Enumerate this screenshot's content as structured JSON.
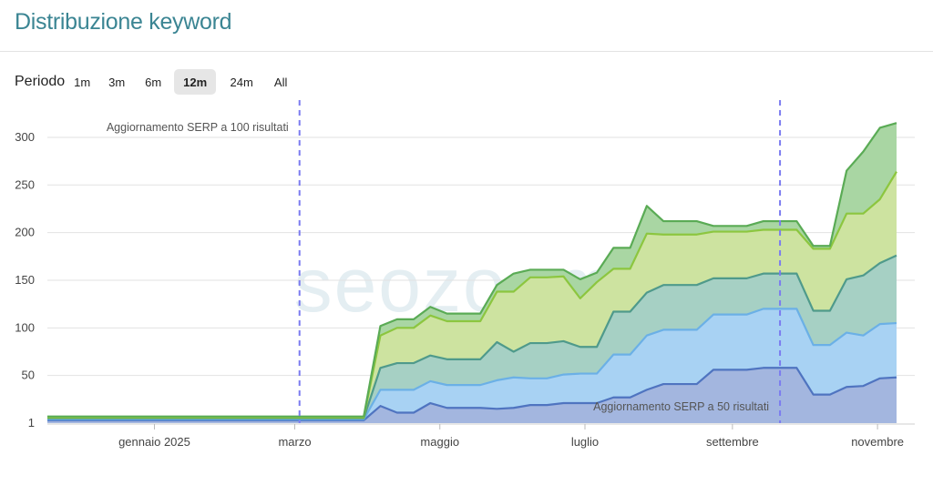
{
  "header": {
    "title": "Distribuzione keyword"
  },
  "period": {
    "label": "Periodo",
    "options": [
      "1m",
      "3m",
      "6m",
      "12m",
      "24m",
      "All"
    ],
    "selected": "12m"
  },
  "watermark": "seozoom",
  "colors": {
    "title": "#3b8593",
    "annotation_line": "#7b7bf0",
    "series": [
      "#4f74c0",
      "#6bb0e6",
      "#4f9a8b",
      "#8cc63f",
      "#5aab55"
    ],
    "fills": [
      "#a3b6df",
      "#a8d2f3",
      "#a6d0c4",
      "#cde3a0",
      "#a9d6a3"
    ]
  },
  "chart_data": {
    "type": "area",
    "stacked": true,
    "x_labels": [
      "gennaio 2025",
      "marzo",
      "maggio",
      "luglio",
      "settembre",
      "novembre"
    ],
    "y_ticks": [
      1,
      50,
      100,
      150,
      200,
      250,
      300
    ],
    "ylim": [
      0,
      320
    ],
    "x": [
      "2024-11-17",
      "2024-11-24",
      "2024-12-01",
      "2024-12-08",
      "2024-12-15",
      "2024-12-22",
      "2024-12-29",
      "2025-01-05",
      "2025-01-12",
      "2025-01-19",
      "2025-01-26",
      "2025-02-02",
      "2025-02-09",
      "2025-02-16",
      "2025-02-23",
      "2025-03-02",
      "2025-03-09",
      "2025-03-16",
      "2025-03-23",
      "2025-03-30",
      "2025-04-06",
      "2025-04-13",
      "2025-04-20",
      "2025-04-27",
      "2025-05-04",
      "2025-05-11",
      "2025-05-18",
      "2025-05-25",
      "2025-06-01",
      "2025-06-08",
      "2025-06-15",
      "2025-06-22",
      "2025-06-29",
      "2025-07-06",
      "2025-07-13",
      "2025-07-20",
      "2025-07-27",
      "2025-08-03",
      "2025-08-10",
      "2025-08-17",
      "2025-08-24",
      "2025-08-31",
      "2025-09-07",
      "2025-09-14",
      "2025-09-21",
      "2025-09-28",
      "2025-10-05",
      "2025-10-12",
      "2025-10-19",
      "2025-10-26",
      "2025-11-02",
      "2025-11-09"
    ],
    "series_totals": [
      [
        3,
        3,
        3,
        3,
        3,
        3,
        3,
        3,
        3,
        3,
        3,
        3,
        3,
        3,
        3,
        3,
        3,
        3,
        3,
        3,
        18,
        11,
        11,
        21,
        16,
        16,
        16,
        15,
        16,
        19,
        19,
        21,
        21,
        21,
        27,
        27,
        35,
        41,
        41,
        41,
        56,
        56,
        56,
        58,
        58,
        58,
        30,
        30,
        38,
        39,
        47,
        48
      ],
      [
        4,
        4,
        4,
        4,
        4,
        4,
        4,
        4,
        4,
        4,
        4,
        4,
        4,
        4,
        4,
        4,
        4,
        4,
        4,
        4,
        35,
        35,
        35,
        44,
        40,
        40,
        40,
        45,
        48,
        47,
        47,
        51,
        52,
        52,
        72,
        72,
        92,
        98,
        98,
        98,
        114,
        114,
        114,
        120,
        120,
        120,
        82,
        82,
        95,
        92,
        104,
        105
      ],
      [
        5,
        5,
        5,
        5,
        5,
        5,
        5,
        5,
        5,
        5,
        5,
        5,
        5,
        5,
        5,
        5,
        5,
        5,
        5,
        5,
        58,
        63,
        63,
        71,
        67,
        67,
        67,
        85,
        75,
        84,
        84,
        86,
        80,
        80,
        117,
        117,
        137,
        145,
        145,
        145,
        152,
        152,
        152,
        157,
        157,
        157,
        118,
        118,
        151,
        155,
        168,
        176
      ],
      [
        6,
        6,
        6,
        6,
        6,
        6,
        6,
        6,
        6,
        6,
        6,
        6,
        6,
        6,
        6,
        6,
        6,
        6,
        6,
        6,
        92,
        100,
        100,
        113,
        107,
        107,
        107,
        138,
        138,
        153,
        153,
        154,
        131,
        148,
        162,
        162,
        199,
        198,
        198,
        198,
        201,
        201,
        201,
        203,
        203,
        203,
        183,
        183,
        220,
        220,
        235,
        264
      ],
      [
        7,
        7,
        7,
        7,
        7,
        7,
        7,
        7,
        7,
        7,
        7,
        7,
        7,
        7,
        7,
        7,
        7,
        7,
        7,
        7,
        102,
        109,
        109,
        122,
        115,
        115,
        115,
        145,
        157,
        161,
        161,
        161,
        151,
        158,
        184,
        184,
        228,
        212,
        212,
        212,
        207,
        207,
        207,
        212,
        212,
        212,
        186,
        186,
        265,
        285,
        310,
        315
      ]
    ],
    "annotations": [
      {
        "x": "2025-03-03",
        "label": "Aggiornamento SERP a 100 risultati"
      },
      {
        "x": "2025-09-21",
        "label": "Aggiornamento SERP a 50 risultati"
      }
    ]
  }
}
